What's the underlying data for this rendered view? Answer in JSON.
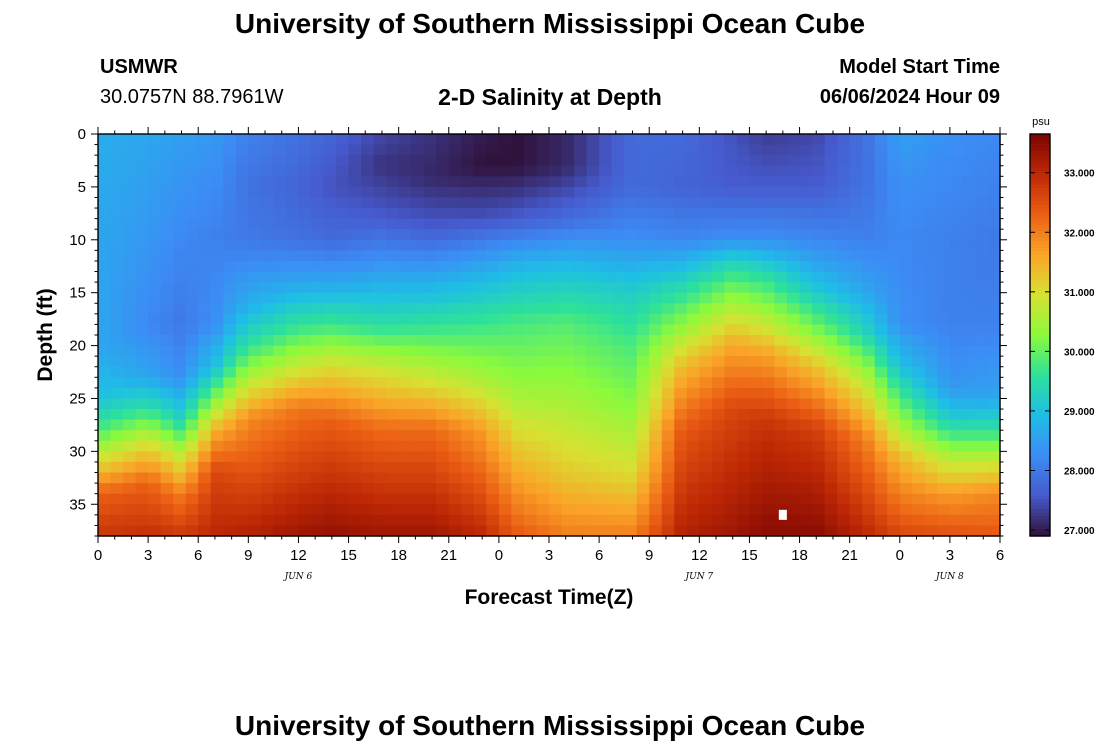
{
  "titles": {
    "main": "University of Southern Mississippi Ocean Cube",
    "footer": "University of Southern Mississippi Ocean Cube"
  },
  "header": {
    "station": "USMWR",
    "coords": "30.0757N  88.7961W",
    "plot_title": "2-D Salinity at Depth",
    "model_label": "Model Start Time",
    "model_time": "06/06/2024 Hour 09"
  },
  "chart_data": {
    "type": "heatmap",
    "title": "2-D Salinity at Depth",
    "xlabel": "Forecast Time(Z)",
    "ylabel": "Depth (ft)",
    "x_unit": "hours since 06/06/2024 00Z",
    "x_ticks": [
      {
        "hour": 0,
        "label": "0"
      },
      {
        "hour": 3,
        "label": "3"
      },
      {
        "hour": 6,
        "label": "6"
      },
      {
        "hour": 9,
        "label": "9"
      },
      {
        "hour": 12,
        "label": "12"
      },
      {
        "hour": 15,
        "label": "15"
      },
      {
        "hour": 18,
        "label": "18"
      },
      {
        "hour": 21,
        "label": "21"
      },
      {
        "hour": 24,
        "label": "0"
      },
      {
        "hour": 27,
        "label": "3"
      },
      {
        "hour": 30,
        "label": "6"
      },
      {
        "hour": 33,
        "label": "9"
      },
      {
        "hour": 36,
        "label": "12"
      },
      {
        "hour": 39,
        "label": "15"
      },
      {
        "hour": 42,
        "label": "18"
      },
      {
        "hour": 45,
        "label": "21"
      },
      {
        "hour": 48,
        "label": "0"
      },
      {
        "hour": 51,
        "label": "3"
      },
      {
        "hour": 54,
        "label": "6"
      }
    ],
    "date_labels": [
      {
        "hour": 12,
        "label": "JUN 6"
      },
      {
        "hour": 36,
        "label": "JUN 7"
      },
      {
        "hour": 51,
        "label": "JUN 8"
      }
    ],
    "xlim": [
      0,
      54
    ],
    "y_ticks": [
      0,
      5,
      10,
      15,
      20,
      25,
      30,
      35
    ],
    "ylim": [
      0,
      38
    ],
    "y_inverted": true,
    "colorbar": {
      "unit": "psu",
      "range": [
        26.9,
        33.65
      ],
      "ticks": [
        {
          "value": 27.0,
          "label": "27.000"
        },
        {
          "value": 28.0,
          "label": "28.000"
        },
        {
          "value": 29.0,
          "label": "29.000"
        },
        {
          "value": 30.0,
          "label": "30.000"
        },
        {
          "value": 31.0,
          "label": "31.000"
        },
        {
          "value": 32.0,
          "label": "32.000"
        },
        {
          "value": 33.0,
          "label": "33.000"
        }
      ]
    },
    "profiles": [
      {
        "hour": 0,
        "depth": [
          0,
          10,
          20,
          25,
          28,
          31,
          34,
          38
        ],
        "salinity": [
          28.7,
          28.6,
          28.6,
          29.0,
          29.8,
          31.0,
          32.3,
          32.8
        ]
      },
      {
        "hour": 3,
        "depth": [
          0,
          10,
          18,
          23,
          26,
          29,
          33,
          38
        ],
        "salinity": [
          28.6,
          28.4,
          28.2,
          28.6,
          29.6,
          30.9,
          32.3,
          32.9
        ]
      },
      {
        "hour": 5,
        "depth": [
          0,
          10,
          18,
          23,
          27,
          30,
          34,
          38
        ],
        "salinity": [
          28.5,
          28.2,
          28.0,
          28.3,
          29.3,
          30.6,
          32.0,
          32.8
        ]
      },
      {
        "hour": 7,
        "depth": [
          0,
          10,
          18,
          22,
          25,
          28,
          32,
          38
        ],
        "salinity": [
          28.4,
          28.1,
          28.3,
          29.0,
          30.2,
          31.5,
          32.6,
          33.0
        ]
      },
      {
        "hour": 9,
        "depth": [
          0,
          5,
          10,
          16,
          20,
          23,
          27,
          38
        ],
        "salinity": [
          28.1,
          27.9,
          28.0,
          28.7,
          29.6,
          30.6,
          31.9,
          33.1
        ]
      },
      {
        "hour": 12,
        "depth": [
          0,
          5,
          10,
          14,
          18,
          22,
          26,
          38
        ],
        "salinity": [
          27.9,
          27.7,
          27.9,
          28.6,
          29.6,
          30.8,
          32.1,
          33.3
        ]
      },
      {
        "hour": 14,
        "depth": [
          0,
          5,
          10,
          14,
          18,
          22,
          27,
          38
        ],
        "salinity": [
          27.7,
          27.5,
          27.8,
          28.6,
          29.7,
          31.0,
          32.3,
          33.4
        ]
      },
      {
        "hour": 17,
        "depth": [
          0,
          3,
          8,
          13,
          18,
          22,
          28,
          38
        ],
        "salinity": [
          27.4,
          27.2,
          27.6,
          28.5,
          29.5,
          30.8,
          32.2,
          33.3
        ]
      },
      {
        "hour": 20,
        "depth": [
          0,
          4,
          9,
          13,
          18,
          23,
          28,
          38
        ],
        "salinity": [
          27.2,
          27.1,
          27.6,
          28.5,
          29.6,
          30.8,
          32.2,
          33.3
        ]
      },
      {
        "hour": 23,
        "depth": [
          0,
          3,
          8,
          12,
          18,
          23,
          28,
          38
        ],
        "salinity": [
          27.0,
          26.9,
          27.5,
          28.5,
          29.7,
          30.5,
          31.7,
          33.0
        ]
      },
      {
        "hour": 25,
        "depth": [
          0,
          3,
          8,
          12,
          18,
          24,
          30,
          38
        ],
        "salinity": [
          26.9,
          26.9,
          27.6,
          28.7,
          29.8,
          30.4,
          31.3,
          32.4
        ]
      },
      {
        "hour": 28,
        "depth": [
          0,
          3,
          8,
          12,
          18,
          24,
          31,
          38
        ],
        "salinity": [
          27.1,
          27.1,
          27.8,
          28.8,
          29.9,
          30.4,
          31.1,
          32.0
        ]
      },
      {
        "hour": 32,
        "depth": [
          0,
          5,
          10,
          15,
          20,
          26,
          32,
          38
        ],
        "salinity": [
          27.8,
          27.8,
          28.3,
          29.2,
          29.8,
          30.3,
          31.0,
          32.0
        ]
      },
      {
        "hour": 35,
        "depth": [
          0,
          5,
          10,
          14,
          18,
          22,
          28,
          38
        ],
        "salinity": [
          27.8,
          27.7,
          28.2,
          29.3,
          30.3,
          31.4,
          32.4,
          33.1
        ]
      },
      {
        "hour": 38,
        "depth": [
          0,
          5,
          10,
          12,
          16,
          20,
          26,
          38
        ],
        "salinity": [
          27.5,
          27.6,
          28.3,
          29.3,
          30.5,
          31.6,
          32.6,
          33.3
        ]
      },
      {
        "hour": 40,
        "depth": [
          0,
          5,
          10,
          13,
          17,
          21,
          27,
          38
        ],
        "salinity": [
          27.3,
          27.6,
          28.3,
          29.4,
          30.5,
          31.7,
          32.8,
          33.5
        ]
      },
      {
        "hour": 43,
        "depth": [
          0,
          5,
          10,
          14,
          18,
          22,
          28,
          38
        ],
        "salinity": [
          27.4,
          27.6,
          28.2,
          28.9,
          30.0,
          31.3,
          32.7,
          33.5
        ]
      },
      {
        "hour": 46,
        "depth": [
          0,
          5,
          10,
          15,
          19,
          23,
          29,
          38
        ],
        "salinity": [
          27.9,
          27.9,
          28.1,
          28.6,
          29.4,
          30.6,
          32.0,
          33.0
        ]
      },
      {
        "hour": 48,
        "depth": [
          0,
          5,
          10,
          18,
          22,
          26,
          31,
          38
        ],
        "salinity": [
          28.5,
          28.3,
          28.2,
          28.3,
          29.0,
          30.1,
          31.5,
          32.6
        ]
      },
      {
        "hour": 51,
        "depth": [
          0,
          10,
          18,
          24,
          27,
          30,
          34,
          38
        ],
        "salinity": [
          28.3,
          28.1,
          28.1,
          28.4,
          29.2,
          30.4,
          31.7,
          32.5
        ]
      },
      {
        "hour": 54,
        "depth": [
          0,
          10,
          18,
          25,
          28,
          31,
          34,
          38
        ],
        "salinity": [
          28.2,
          28.0,
          28.1,
          28.6,
          29.6,
          30.8,
          31.9,
          32.4
        ]
      }
    ],
    "marker": {
      "hour": 41.0,
      "depth": 36.0
    }
  }
}
